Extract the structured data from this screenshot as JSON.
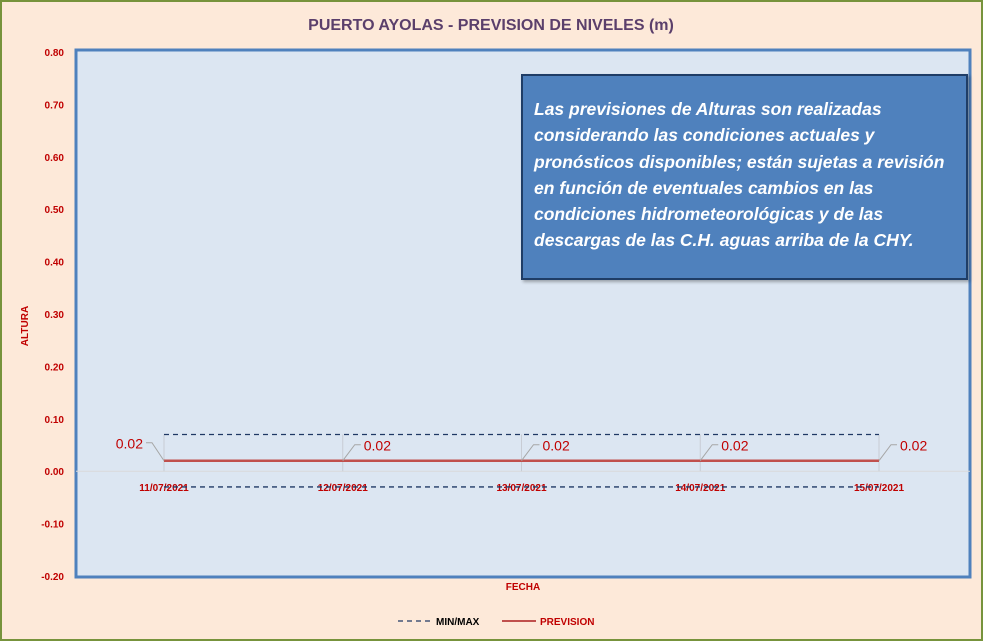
{
  "chart_data": {
    "type": "line",
    "title": "PUERTO AYOLAS - PREVISION DE NIVELES (m)",
    "xlabel": "FECHA",
    "ylabel": "ALTURA",
    "ylim": [
      -0.2,
      0.8
    ],
    "yticks": [
      "0.80",
      "0.70",
      "0.60",
      "0.50",
      "0.40",
      "0.30",
      "0.20",
      "0.10",
      "0.00",
      "-0.10",
      "-0.20"
    ],
    "categories": [
      "11/07/2021",
      "12/07/2021",
      "13/07/2021",
      "14/07/2021",
      "15/07/2021"
    ],
    "series": [
      {
        "name": "PREVISION",
        "values": [
          0.02,
          0.02,
          0.02,
          0.02,
          0.02
        ],
        "labels": [
          "0.02",
          "0.02",
          "0.02",
          "0.02",
          "0.02"
        ],
        "color": "#c0504d",
        "style": "solid"
      },
      {
        "name": "MIN/MAX",
        "max": [
          0.07,
          0.07,
          0.07,
          0.07,
          0.07
        ],
        "min": [
          -0.03,
          -0.03,
          -0.03,
          -0.03,
          -0.03
        ],
        "color": "#1f3864",
        "style": "dashed"
      }
    ],
    "legend": "bottom",
    "grid": false,
    "annotation": "Las previsiones de Alturas son realizadas considerando las condiciones actuales y pronósticos disponibles;  están sujetas a revisión en función de eventuales cambios en las condiciones hidrometeorológicas y de las descargas de las C.H. aguas arriba de la CHY."
  },
  "colors": {
    "background": "#fde9d9",
    "plot": "#dce6f2",
    "axis_text": "#c00000",
    "note_box": "#4f81bd"
  }
}
